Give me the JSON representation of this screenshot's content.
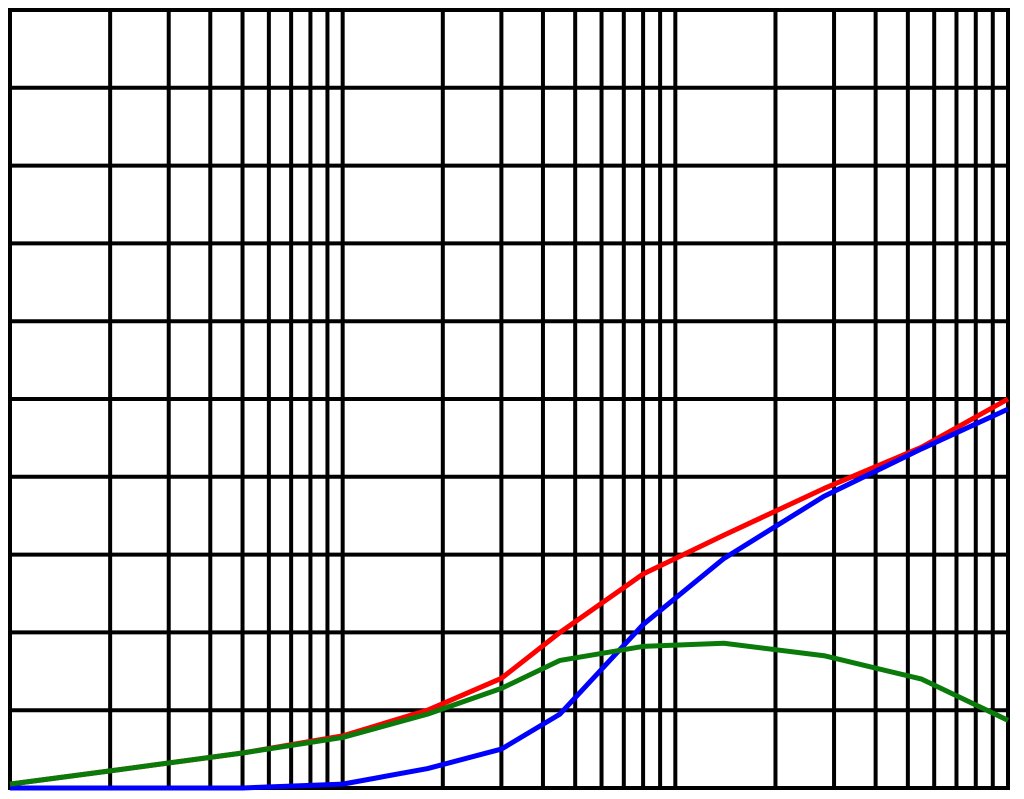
{
  "chart_data": {
    "type": "line",
    "xscale": "log",
    "grid": true,
    "x": [
      1,
      2,
      5,
      10,
      18,
      30,
      45,
      80,
      140,
      280,
      550,
      1000
    ],
    "series": [
      {
        "color": "#ff0000",
        "values": [
          0.05,
          0.22,
          0.45,
          0.67,
          1.0,
          1.41,
          2.0,
          2.75,
          3.25,
          3.85,
          4.38,
          5.0
        ]
      },
      {
        "color": "#0000ff",
        "values": [
          0,
          0,
          0,
          0.05,
          0.25,
          0.5,
          0.95,
          2.1,
          2.95,
          3.75,
          4.36,
          4.87
        ]
      },
      {
        "color": "#0a7a0a",
        "values": [
          0.05,
          0.22,
          0.45,
          0.65,
          0.95,
          1.28,
          1.64,
          1.82,
          1.86,
          1.7,
          1.4,
          0.87
        ]
      }
    ],
    "xlim": [
      1,
      1000
    ],
    "ylim": [
      0,
      10
    ],
    "xticks": [
      1,
      2,
      3,
      4,
      5,
      6,
      7,
      8,
      9,
      10,
      20,
      30,
      40,
      50,
      60,
      70,
      80,
      90,
      100,
      200,
      300,
      400,
      500,
      600,
      700,
      800,
      900,
      1000
    ],
    "yticks": [
      0,
      1,
      2,
      3,
      4,
      5,
      6,
      7,
      8,
      9,
      10
    ]
  }
}
